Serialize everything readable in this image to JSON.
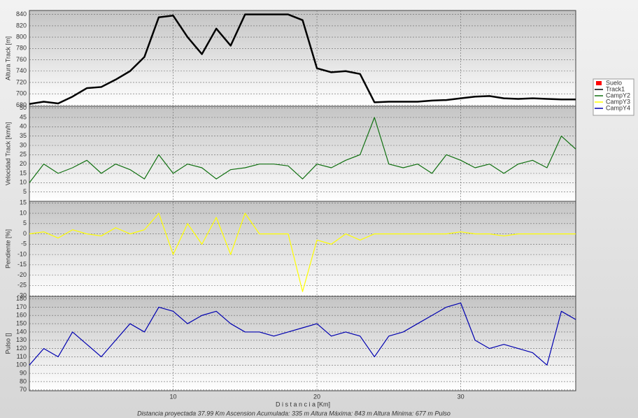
{
  "chart_data": [
    {
      "type": "line",
      "ylabel": "Altura Track [m]",
      "x": [
        0,
        1,
        2,
        3,
        4,
        5,
        6,
        7,
        8,
        9,
        10,
        11,
        12,
        13,
        14,
        15,
        16,
        17,
        18,
        19,
        20,
        21,
        22,
        23,
        24,
        25,
        26,
        27,
        28,
        29,
        30,
        31,
        32,
        33,
        34,
        35,
        36,
        37,
        38
      ],
      "series": [
        {
          "name": "Track1",
          "color": "#000000",
          "values": [
            682,
            686,
            683,
            695,
            710,
            712,
            725,
            740,
            765,
            835,
            838,
            800,
            770,
            815,
            785,
            840,
            840,
            840,
            840,
            830,
            745,
            738,
            740,
            735,
            685,
            686,
            686,
            686,
            688,
            689,
            692,
            695,
            696,
            692,
            691,
            692,
            691,
            690,
            690
          ]
        }
      ],
      "xlim": [
        0,
        38
      ],
      "xticks": [
        10,
        20,
        30
      ],
      "ylim": [
        678,
        847
      ],
      "yticks": [
        680,
        700,
        720,
        740,
        760,
        780,
        800,
        820,
        840
      ],
      "grid": true
    },
    {
      "type": "line",
      "ylabel": "Velocidad Track [km/h]",
      "x": [
        0,
        1,
        2,
        3,
        4,
        5,
        6,
        7,
        8,
        9,
        10,
        11,
        12,
        13,
        14,
        15,
        16,
        17,
        18,
        19,
        20,
        21,
        22,
        23,
        24,
        25,
        26,
        27,
        28,
        29,
        30,
        31,
        32,
        33,
        34,
        35,
        36,
        37,
        38
      ],
      "series": [
        {
          "name": "CampY2",
          "color": "#107010",
          "values": [
            10,
            20,
            15,
            18,
            22,
            15,
            20,
            17,
            12,
            25,
            15,
            20,
            18,
            12,
            17,
            18,
            20,
            20,
            19,
            12,
            20,
            18,
            22,
            25,
            45,
            20,
            18,
            20,
            15,
            25,
            22,
            18,
            20,
            15,
            20,
            22,
            18,
            35,
            28
          ]
        }
      ],
      "xlim": [
        0,
        38
      ],
      "xticks": [
        10,
        20,
        30
      ],
      "ylim": [
        0,
        51
      ],
      "yticks": [
        5,
        10,
        15,
        20,
        25,
        30,
        35,
        40,
        45,
        50
      ],
      "grid": true
    },
    {
      "type": "line",
      "ylabel": "Pendiente [%]",
      "x": [
        0,
        1,
        2,
        3,
        4,
        5,
        6,
        7,
        8,
        9,
        10,
        11,
        12,
        13,
        14,
        15,
        16,
        17,
        18,
        19,
        20,
        21,
        22,
        23,
        24,
        25,
        26,
        27,
        28,
        29,
        30,
        31,
        32,
        33,
        34,
        35,
        36,
        37,
        38
      ],
      "series": [
        {
          "name": "CampY3",
          "color": "#ffff00",
          "values": [
            0,
            1,
            -2,
            2,
            0,
            -1,
            3,
            0,
            2,
            10,
            -10,
            5,
            -5,
            8,
            -10,
            10,
            0,
            0,
            0,
            -28,
            -3,
            -5,
            0,
            -3,
            0,
            0,
            0,
            0,
            0,
            0,
            1,
            0,
            0,
            -1,
            0,
            0,
            0,
            0,
            0
          ]
        }
      ],
      "xlim": [
        0,
        38
      ],
      "xticks": [
        10,
        20,
        30
      ],
      "ylim": [
        -30.3,
        15.8
      ],
      "yticks": [
        15,
        10,
        5,
        0,
        -5,
        -10,
        -15,
        -20,
        -25,
        -30
      ],
      "grid": true
    },
    {
      "type": "line",
      "ylabel": "Pulso []",
      "xlabel": "D i s t a n c i a  [Km]",
      "x": [
        0,
        1,
        2,
        3,
        4,
        5,
        6,
        7,
        8,
        9,
        10,
        11,
        12,
        13,
        14,
        15,
        16,
        17,
        18,
        19,
        20,
        21,
        22,
        23,
        24,
        25,
        26,
        27,
        28,
        29,
        30,
        31,
        32,
        33,
        34,
        35,
        36,
        37,
        38
      ],
      "series": [
        {
          "name": "CampY4",
          "color": "#0000b0",
          "values": [
            100,
            120,
            110,
            140,
            125,
            110,
            130,
            150,
            140,
            170,
            165,
            150,
            160,
            165,
            150,
            140,
            140,
            135,
            140,
            145,
            150,
            135,
            140,
            135,
            110,
            135,
            140,
            150,
            160,
            170,
            175,
            130,
            120,
            125,
            120,
            115,
            100,
            165,
            155
          ]
        }
      ],
      "xlim": [
        0,
        38
      ],
      "xticks": [
        10,
        20,
        30
      ],
      "ylim": [
        69,
        183
      ],
      "yticks": [
        70,
        80,
        90,
        100,
        110,
        120,
        130,
        140,
        150,
        160,
        170,
        180
      ],
      "grid": true
    }
  ],
  "legend": [
    {
      "name": "Suelo",
      "color": "#ff0000"
    }
  ],
  "footer": "Distancia proyectada 37.99 Km   Ascension Acumulada: 335 m   Altura Máxima: 843 m   Altura Minima: 677 m   Pulso"
}
